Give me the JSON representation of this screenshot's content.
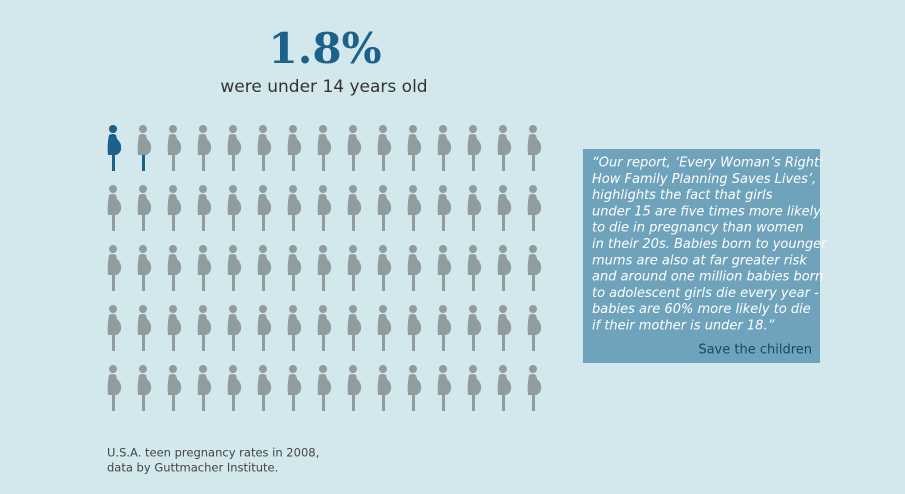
{
  "chart_data": {
    "type": "pictogram",
    "value": 1.8,
    "value_label": "1.8%",
    "max": 100,
    "icon_count": 75,
    "subtitle": "were under 14 years old",
    "color": "#1b6189",
    "empty_color": "#909c9d",
    "quote": [
      "“Our report, ‘Every Woman’s Right:",
      "How Family Planning Saves Lives’,",
      "highlights the fact that girls",
      "under 15 are five times more likely",
      "to die in pregnancy than women",
      "in their 20s. Babies born to younger",
      "mums are also at far greater risk",
      "and around one million babies born",
      "to adolescent girls die every year -",
      "babies are 60% more likely to die",
      "if their mother is under 18.”"
    ],
    "quote_source": "Save the children",
    "note": [
      "U.S.A. teen pregnancy rates in 2008,",
      "data by Guttmacher Institute."
    ]
  }
}
